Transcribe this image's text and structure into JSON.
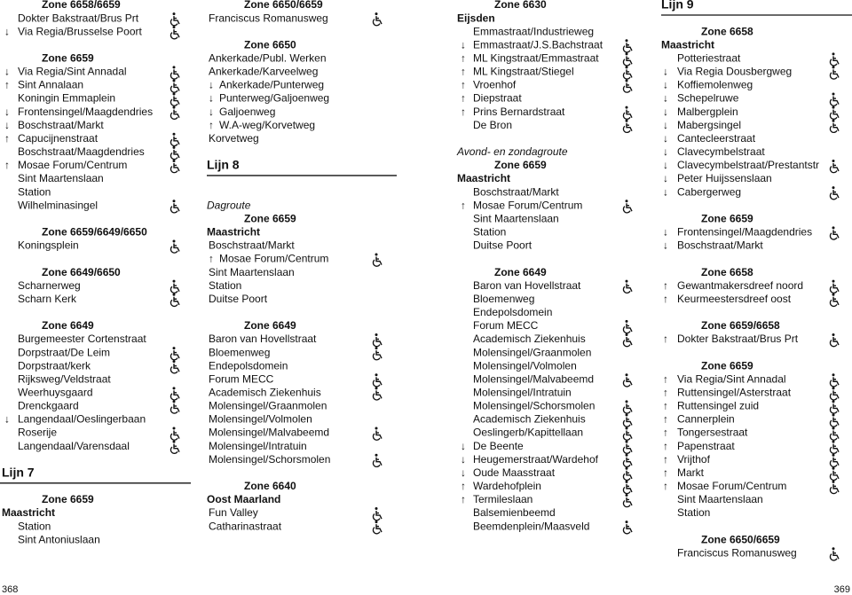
{
  "columns": [
    {
      "items": [
        {
          "kind": "zone",
          "text": "Zone 6658/6659"
        },
        {
          "text": "Dokter Bakstraat/Brus Prt",
          "wheelchair": true
        },
        {
          "text": "Via Regia/Brusselse Poort",
          "dir": "↓",
          "wheelchair": true
        },
        {
          "kind": "zone",
          "text": "Zone 6659"
        },
        {
          "text": "Via Regia/Sint Annadal",
          "dir": "↓",
          "wheelchair": true
        },
        {
          "text": "Sint Annalaan",
          "dir": "↑",
          "wheelchair": true
        },
        {
          "text": "Koningin Emmaplein",
          "wheelchair": true
        },
        {
          "text": "Frontensingel/Maagdendries",
          "dir": "↓",
          "wheelchair": true
        },
        {
          "text": "Boschstraat/Markt",
          "dir": "↓"
        },
        {
          "text": "Capucijnenstraat",
          "dir": "↑",
          "wheelchair": true
        },
        {
          "text": "Boschstraat/Maagdendries",
          "wheelchair": true
        },
        {
          "text": "Mosae Forum/Centrum",
          "dir": "↑",
          "wheelchair": true
        },
        {
          "text": "Sint Maartenslaan"
        },
        {
          "text": "Station"
        },
        {
          "text": "Wilhelminasingel",
          "wheelchair": true
        },
        {
          "kind": "zone",
          "text": "Zone 6659/6649/6650"
        },
        {
          "text": "Koningsplein",
          "wheelchair": true
        },
        {
          "kind": "zone",
          "text": "Zone 6649/6650"
        },
        {
          "text": "Scharnerweg",
          "wheelchair": true
        },
        {
          "text": "Scharn Kerk",
          "wheelchair": true
        },
        {
          "kind": "zone",
          "text": "Zone 6649"
        },
        {
          "text": "Burgemeester Cortenstraat"
        },
        {
          "text": "Dorpstraat/De Leim",
          "wheelchair": true
        },
        {
          "text": "Dorpstraat/kerk",
          "wheelchair": true
        },
        {
          "text": "Rijksweg/Veldstraat"
        },
        {
          "text": "Weerhuysgaard",
          "wheelchair": true
        },
        {
          "text": "Drenckgaard",
          "wheelchair": true
        },
        {
          "text": "Langendaal/Oeslingerbaan",
          "dir": "↓"
        },
        {
          "text": "Roserije",
          "wheelchair": true
        },
        {
          "text": "Langendaal/Varensdaal",
          "wheelchair": true
        },
        {
          "kind": "lijn",
          "text": "Lijn 7"
        },
        {
          "kind": "zone",
          "text": "Zone 6659"
        },
        {
          "kind": "city",
          "text": "Maastricht"
        },
        {
          "text": "Station"
        },
        {
          "text": "Sint Antoniuslaan"
        }
      ]
    },
    {
      "items": [
        {
          "kind": "zone",
          "text": "Zone 6650/6659"
        },
        {
          "text": "Franciscus Romanusweg",
          "wheelchair": true
        },
        {
          "kind": "zone",
          "text": "Zone 6650"
        },
        {
          "text": "Ankerkade/Publ. Werken"
        },
        {
          "text": "Ankerkade/Karveelweg"
        },
        {
          "text": "Ankerkade/Punterweg",
          "dir": "↓"
        },
        {
          "text": "Punterweg/Galjoenweg",
          "dir": "↓"
        },
        {
          "text": "Galjoenweg",
          "dir": "↓"
        },
        {
          "text": "W.A-weg/Korvetweg",
          "dir": "↑"
        },
        {
          "text": "Korvetweg"
        },
        {
          "kind": "lijn",
          "text": "Lijn 8"
        },
        {
          "kind": "italic",
          "text": "Dagroute"
        },
        {
          "kind": "zone",
          "text": "Zone 6659"
        },
        {
          "kind": "city",
          "text": "Maastricht"
        },
        {
          "text": "Boschstraat/Markt"
        },
        {
          "text": "Mosae Forum/Centrum",
          "dir": "↑",
          "wheelchair": true
        },
        {
          "text": "Sint Maartenslaan"
        },
        {
          "text": "Station"
        },
        {
          "text": "Duitse Poort"
        },
        {
          "kind": "zone",
          "text": "Zone 6649"
        },
        {
          "text": "Baron van Hovellstraat",
          "wheelchair": true
        },
        {
          "text": "Bloemenweg",
          "wheelchair": true
        },
        {
          "text": "Endepolsdomein"
        },
        {
          "text": "Forum MECC",
          "wheelchair": true
        },
        {
          "text": "Academisch Ziekenhuis",
          "wheelchair": true
        },
        {
          "text": "Molensingel/Graanmolen"
        },
        {
          "text": "Molensingel/Volmolen"
        },
        {
          "text": "Molensingel/Malvabeemd",
          "wheelchair": true
        },
        {
          "text": "Molensingel/Intratuin"
        },
        {
          "text": "Molensingel/Schorsmolen",
          "wheelchair": true
        },
        {
          "kind": "zone",
          "text": "Zone 6640"
        },
        {
          "kind": "city",
          "text": "Oost Maarland"
        },
        {
          "text": "Fun Valley",
          "wheelchair": true
        },
        {
          "text": "Catharinastraat",
          "wheelchair": true
        }
      ]
    },
    {
      "items": [
        {
          "kind": "zone",
          "text": "Zone 6630"
        },
        {
          "kind": "city",
          "text": "Eijsden"
        },
        {
          "text": "Emmastraat/Industrieweg"
        },
        {
          "text": "Emmastraat/J.S.Bachstraat",
          "dir": "↓",
          "wheelchair": true
        },
        {
          "text": "ML Kingstraat/Emmastraat",
          "dir": "↑",
          "wheelchair": true
        },
        {
          "text": "ML Kingstraat/Stiegel",
          "dir": "↑",
          "wheelchair": true
        },
        {
          "text": "Vroenhof",
          "dir": "↑",
          "wheelchair": true
        },
        {
          "text": "Diepstraat",
          "dir": "↑"
        },
        {
          "text": "Prins Bernardstraat",
          "dir": "↑",
          "wheelchair": true
        },
        {
          "text": "De Bron",
          "wheelchair": true
        },
        {
          "kind": "italic",
          "text": "Avond- en zondagroute"
        },
        {
          "kind": "zone",
          "text": "Zone 6659"
        },
        {
          "kind": "city",
          "text": "Maastricht"
        },
        {
          "text": "Boschstraat/Markt"
        },
        {
          "text": "Mosae Forum/Centrum",
          "dir": "↑",
          "wheelchair": true
        },
        {
          "text": "Sint Maartenslaan"
        },
        {
          "text": "Station"
        },
        {
          "text": "Duitse Poort"
        },
        {
          "kind": "zone",
          "text": "Zone 6649"
        },
        {
          "text": "Baron van Hovellstraat",
          "wheelchair": true
        },
        {
          "text": "Bloemenweg"
        },
        {
          "text": "Endepolsdomein"
        },
        {
          "text": "Forum MECC",
          "wheelchair": true
        },
        {
          "text": "Academisch Ziekenhuis",
          "wheelchair": true
        },
        {
          "text": "Molensingel/Graanmolen"
        },
        {
          "text": "Molensingel/Volmolen"
        },
        {
          "text": "Molensingel/Malvabeemd",
          "wheelchair": true
        },
        {
          "text": "Molensingel/Intratuin"
        },
        {
          "text": "Molensingel/Schorsmolen",
          "wheelchair": true
        },
        {
          "text": "Academisch Ziekenhuis",
          "wheelchair": true
        },
        {
          "text": "Oeslingerb/Kapittellaan",
          "wheelchair": true
        },
        {
          "text": "De Beente",
          "dir": "↓",
          "wheelchair": true
        },
        {
          "text": "Heugemerstraat/Wardehof",
          "dir": "↓",
          "wheelchair": true
        },
        {
          "text": "Oude Maasstraat",
          "dir": "↓",
          "wheelchair": true
        },
        {
          "text": "Wardehofplein",
          "dir": "↑",
          "wheelchair": true
        },
        {
          "text": "Termileslaan",
          "dir": "↑",
          "wheelchair": true
        },
        {
          "text": "Balsemienbeemd"
        },
        {
          "text": "Beemdenplein/Maasveld",
          "wheelchair": true
        }
      ]
    },
    {
      "items": [
        {
          "kind": "lijn",
          "text": "Lijn 9"
        },
        {
          "kind": "zone",
          "text": "Zone 6658"
        },
        {
          "kind": "city",
          "text": "Maastricht"
        },
        {
          "text": "Potteriestraat",
          "wheelchair": true
        },
        {
          "text": "Via Regia Dousbergweg",
          "dir": "↓",
          "wheelchair": true
        },
        {
          "text": "Koffiemolenweg",
          "dir": "↓"
        },
        {
          "text": "Schepelruwe",
          "dir": "↓",
          "wheelchair": true
        },
        {
          "text": "Malbergplein",
          "dir": "↓",
          "wheelchair": true
        },
        {
          "text": "Mabergsingel",
          "dir": "↓",
          "wheelchair": true
        },
        {
          "text": "Cantecleerstraat",
          "dir": "↓"
        },
        {
          "text": "Clavecymbelstraat",
          "dir": "↓"
        },
        {
          "text": "Clavecymbelstraat/Prestantstr",
          "dir": "↓",
          "wheelchair": true
        },
        {
          "text": "Peter Huijssenslaan",
          "dir": "↓"
        },
        {
          "text": "Cabergerweg",
          "dir": "↓",
          "wheelchair": true
        },
        {
          "kind": "zone",
          "text": "Zone 6659"
        },
        {
          "text": "Frontensingel/Maagdendries",
          "dir": "↓",
          "wheelchair": true
        },
        {
          "text": "Boschstraat/Markt",
          "dir": "↓"
        },
        {
          "kind": "zone",
          "text": "Zone 6658"
        },
        {
          "text": "Gewantmakersdreef noord",
          "dir": "↑",
          "wheelchair": true
        },
        {
          "text": "Keurmeestersdreef oost",
          "dir": "↑",
          "wheelchair": true
        },
        {
          "kind": "zone",
          "text": "Zone 6659/6658"
        },
        {
          "text": "Dokter Bakstraat/Brus Prt",
          "dir": "↑",
          "wheelchair": true
        },
        {
          "kind": "zone",
          "text": "Zone 6659"
        },
        {
          "text": "Via Regia/Sint Annadal",
          "dir": "↑",
          "wheelchair": true
        },
        {
          "text": "Ruttensingel/Asterstraat",
          "dir": "↑",
          "wheelchair": true
        },
        {
          "text": "Ruttensingel zuid",
          "dir": "↑",
          "wheelchair": true
        },
        {
          "text": "Cannerplein",
          "dir": "↑",
          "wheelchair": true
        },
        {
          "text": "Tongersestraat",
          "dir": "↑",
          "wheelchair": true
        },
        {
          "text": "Papenstraat",
          "dir": "↑",
          "wheelchair": true
        },
        {
          "text": "Vrijthof",
          "dir": "↑",
          "wheelchair": true
        },
        {
          "text": "Markt",
          "dir": "↑",
          "wheelchair": true
        },
        {
          "text": "Mosae Forum/Centrum",
          "dir": "↑",
          "wheelchair": true
        },
        {
          "text": "Sint Maartenslaan"
        },
        {
          "text": "Station"
        },
        {
          "kind": "zone",
          "text": "Zone 6650/6659"
        },
        {
          "text": "Franciscus Romanusweg",
          "wheelchair": true
        }
      ]
    }
  ],
  "page_numbers": [
    "368",
    "369"
  ]
}
